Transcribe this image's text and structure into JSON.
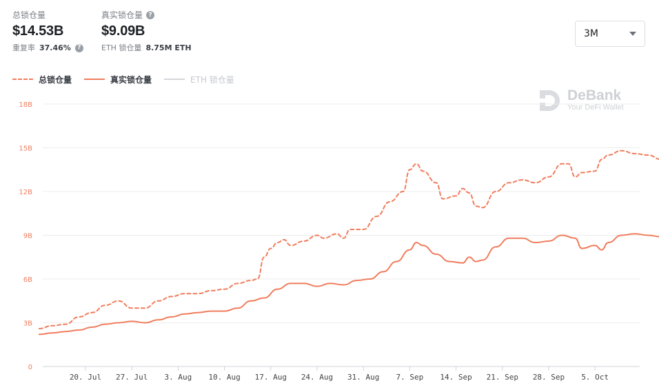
{
  "header": {
    "tvl": {
      "label": "总锁仓量",
      "value": "$14.53B",
      "sub_label": "重复率",
      "sub_value": "37.46%"
    },
    "real": {
      "label": "真实锁仓量",
      "value": "$9.09B",
      "sub_label": "ETH 锁仓量",
      "sub_value": "8.75M ETH"
    }
  },
  "range_select": {
    "selected": "3M"
  },
  "legend": {
    "items": [
      "总锁仓量",
      "真实锁仓量",
      "ETH 锁仓量"
    ]
  },
  "watermark": {
    "brand": "DeBank",
    "tagline": "Your DeFi Wallet"
  },
  "colors": {
    "accent": "#f07c5c",
    "grid": "#ececec",
    "muted": "#d3d6da"
  },
  "chart_data": {
    "type": "line",
    "x_ticks": [
      "20. Jul",
      "27. Jul",
      "3. Aug",
      "10. Aug",
      "17. Aug",
      "24. Aug",
      "31. Aug",
      "7. Sep",
      "14. Sep",
      "21. Sep",
      "28. Sep",
      "5. Oct"
    ],
    "y_ticks": [
      "0",
      "3B",
      "6B",
      "9B",
      "12B",
      "15B",
      "18B"
    ],
    "ylim": [
      0,
      18
    ],
    "grid": true,
    "legend_position": "top-left",
    "series": [
      {
        "name": "总锁仓量",
        "style": "dashed",
        "points": [
          [
            "2020-07-13",
            2.6
          ],
          [
            "2020-07-15",
            2.8
          ],
          [
            "2020-07-17",
            2.9
          ],
          [
            "2020-07-19",
            3.4
          ],
          [
            "2020-07-21",
            3.7
          ],
          [
            "2020-07-23",
            4.2
          ],
          [
            "2020-07-25",
            4.5
          ],
          [
            "2020-07-27",
            4.0
          ],
          [
            "2020-07-29",
            4.0
          ],
          [
            "2020-07-31",
            4.5
          ],
          [
            "2020-08-02",
            4.8
          ],
          [
            "2020-08-04",
            5.0
          ],
          [
            "2020-08-06",
            5.0
          ],
          [
            "2020-08-08",
            5.2
          ],
          [
            "2020-08-10",
            5.3
          ],
          [
            "2020-08-12",
            5.7
          ],
          [
            "2020-08-14",
            5.9
          ],
          [
            "2020-08-15",
            6.0
          ],
          [
            "2020-08-16",
            7.5
          ],
          [
            "2020-08-17",
            8.1
          ],
          [
            "2020-08-18",
            8.5
          ],
          [
            "2020-08-19",
            8.7
          ],
          [
            "2020-08-20",
            8.3
          ],
          [
            "2020-08-22",
            8.6
          ],
          [
            "2020-08-24",
            9.0
          ],
          [
            "2020-08-25",
            8.8
          ],
          [
            "2020-08-27",
            9.1
          ],
          [
            "2020-08-28",
            8.8
          ],
          [
            "2020-08-29",
            9.4
          ],
          [
            "2020-08-31",
            9.4
          ],
          [
            "2020-09-02",
            10.3
          ],
          [
            "2020-09-04",
            11.3
          ],
          [
            "2020-09-06",
            12.0
          ],
          [
            "2020-09-07",
            13.5
          ],
          [
            "2020-09-08",
            13.9
          ],
          [
            "2020-09-09",
            13.4
          ],
          [
            "2020-09-11",
            12.6
          ],
          [
            "2020-09-12",
            11.5
          ],
          [
            "2020-09-14",
            11.7
          ],
          [
            "2020-09-15",
            12.2
          ],
          [
            "2020-09-16",
            11.9
          ],
          [
            "2020-09-17",
            11.0
          ],
          [
            "2020-09-18",
            10.9
          ],
          [
            "2020-09-20",
            12.0
          ],
          [
            "2020-09-22",
            12.6
          ],
          [
            "2020-09-24",
            12.8
          ],
          [
            "2020-09-26",
            12.6
          ],
          [
            "2020-09-28",
            13.0
          ],
          [
            "2020-09-30",
            13.9
          ],
          [
            "2020-10-01",
            13.9
          ],
          [
            "2020-10-02",
            13.0
          ],
          [
            "2020-10-03",
            13.3
          ],
          [
            "2020-10-05",
            13.4
          ],
          [
            "2020-10-06",
            14.2
          ],
          [
            "2020-10-07",
            14.5
          ],
          [
            "2020-10-09",
            14.8
          ],
          [
            "2020-10-11",
            14.6
          ],
          [
            "2020-10-13",
            14.5
          ],
          [
            "2020-10-15",
            14.2
          ],
          [
            "2020-10-17",
            14.2
          ],
          [
            "2020-10-19",
            14.2
          ],
          [
            "2020-10-21",
            13.5
          ],
          [
            "2020-10-23",
            13.7
          ],
          [
            "2020-10-25",
            14.4
          ],
          [
            "2020-10-27",
            14.5
          ],
          [
            "2020-10-29",
            14.53
          ]
        ]
      },
      {
        "name": "真实锁仓量",
        "style": "solid",
        "points": [
          [
            "2020-07-13",
            2.2
          ],
          [
            "2020-07-15",
            2.3
          ],
          [
            "2020-07-17",
            2.4
          ],
          [
            "2020-07-19",
            2.5
          ],
          [
            "2020-07-21",
            2.7
          ],
          [
            "2020-07-23",
            2.9
          ],
          [
            "2020-07-25",
            3.0
          ],
          [
            "2020-07-27",
            3.1
          ],
          [
            "2020-07-29",
            3.0
          ],
          [
            "2020-07-31",
            3.2
          ],
          [
            "2020-08-02",
            3.4
          ],
          [
            "2020-08-04",
            3.6
          ],
          [
            "2020-08-06",
            3.7
          ],
          [
            "2020-08-08",
            3.8
          ],
          [
            "2020-08-10",
            3.8
          ],
          [
            "2020-08-12",
            4.0
          ],
          [
            "2020-08-14",
            4.5
          ],
          [
            "2020-08-16",
            4.7
          ],
          [
            "2020-08-18",
            5.3
          ],
          [
            "2020-08-20",
            5.7
          ],
          [
            "2020-08-22",
            5.7
          ],
          [
            "2020-08-24",
            5.5
          ],
          [
            "2020-08-26",
            5.7
          ],
          [
            "2020-08-28",
            5.6
          ],
          [
            "2020-08-30",
            5.9
          ],
          [
            "2020-09-01",
            6.0
          ],
          [
            "2020-09-03",
            6.5
          ],
          [
            "2020-09-05",
            7.2
          ],
          [
            "2020-09-07",
            8.0
          ],
          [
            "2020-09-08",
            8.5
          ],
          [
            "2020-09-09",
            8.3
          ],
          [
            "2020-09-11",
            7.7
          ],
          [
            "2020-09-13",
            7.2
          ],
          [
            "2020-09-15",
            7.1
          ],
          [
            "2020-09-16",
            7.5
          ],
          [
            "2020-09-17",
            7.2
          ],
          [
            "2020-09-18",
            7.3
          ],
          [
            "2020-09-20",
            8.2
          ],
          [
            "2020-09-22",
            8.8
          ],
          [
            "2020-09-24",
            8.8
          ],
          [
            "2020-09-26",
            8.5
          ],
          [
            "2020-09-28",
            8.6
          ],
          [
            "2020-09-30",
            9.0
          ],
          [
            "2020-10-02",
            8.8
          ],
          [
            "2020-10-03",
            8.1
          ],
          [
            "2020-10-05",
            8.3
          ],
          [
            "2020-10-06",
            8.0
          ],
          [
            "2020-10-07",
            8.5
          ],
          [
            "2020-10-09",
            9.0
          ],
          [
            "2020-10-11",
            9.1
          ],
          [
            "2020-10-13",
            9.0
          ],
          [
            "2020-10-15",
            8.9
          ],
          [
            "2020-10-17",
            8.8
          ],
          [
            "2020-10-19",
            8.8
          ],
          [
            "2020-10-21",
            8.3
          ],
          [
            "2020-10-23",
            8.5
          ],
          [
            "2020-10-25",
            8.9
          ],
          [
            "2020-10-27",
            9.0
          ],
          [
            "2020-10-29",
            9.09
          ]
        ]
      }
    ]
  }
}
